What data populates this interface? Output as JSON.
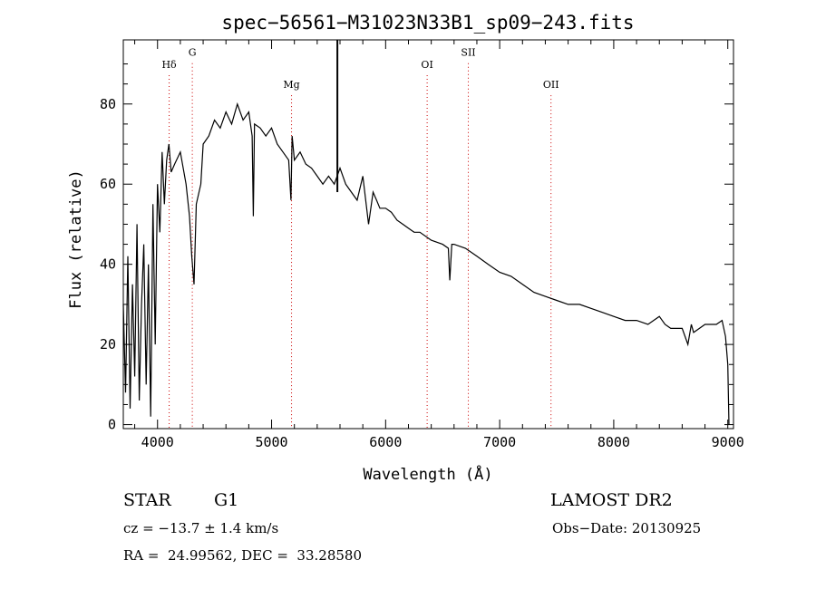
{
  "header": {
    "title": "spec−56561−M31023N33B1_sp09−243.fits"
  },
  "info": {
    "class": "STAR",
    "subclass": "G1",
    "survey": "LAMOST DR2",
    "cz": "cz = −13.7 ± 1.4 km/s",
    "obs_date": "Obs−Date: 20130925",
    "ra_dec": "RA =  24.99562, DEC =  33.28580"
  },
  "chart_data": {
    "type": "line",
    "title": "spec−56561−M31023N33B1_sp09−243.fits",
    "xlabel": "Wavelength (Å)",
    "ylabel": "Flux (relative)",
    "xlim": [
      3700,
      9050
    ],
    "ylim": [
      -1,
      96
    ],
    "x_ticks": [
      4000,
      5000,
      6000,
      7000,
      8000,
      9000
    ],
    "y_ticks": [
      0,
      20,
      40,
      60,
      80
    ],
    "line_color": "#000000",
    "marker_color": "#cc0000",
    "emission_marker": {
      "x": 5577
    },
    "line_markers": [
      {
        "name": "Hδ",
        "x": 4102,
        "label_y": 89
      },
      {
        "name": "G",
        "x": 4305,
        "label_y": 92
      },
      {
        "name": "Mg",
        "x": 5175,
        "label_y": 84
      },
      {
        "name": "OI",
        "x": 6364,
        "label_y": 89
      },
      {
        "name": "SII",
        "x": 6725,
        "label_y": 92
      },
      {
        "name": "OII",
        "x": 7450,
        "label_y": 84
      }
    ],
    "series": [
      {
        "x": [
          3700,
          3720,
          3740,
          3760,
          3780,
          3800,
          3820,
          3840,
          3860,
          3880,
          3900,
          3920,
          3940,
          3960,
          3980,
          4000,
          4020,
          4040,
          4060,
          4080,
          4100,
          4120,
          4150,
          4200,
          4250,
          4280,
          4300,
          4320,
          4340,
          4380,
          4400,
          4450,
          4500,
          4550,
          4600,
          4650,
          4700,
          4750,
          4800,
          4830,
          4840,
          4850,
          4900,
          4950,
          5000,
          5050,
          5100,
          5150,
          5170,
          5180,
          5200,
          5250,
          5300,
          5350,
          5400,
          5450,
          5500,
          5550,
          5600,
          5650,
          5700,
          5750,
          5800,
          5850,
          5890,
          5920,
          5950,
          6000,
          6050,
          6100,
          6150,
          6200,
          6250,
          6300,
          6400,
          6500,
          6550,
          6563,
          6580,
          6600,
          6700,
          6800,
          6900,
          7000,
          7100,
          7200,
          7300,
          7400,
          7500,
          7600,
          7700,
          7800,
          7900,
          8000,
          8100,
          8200,
          8300,
          8400,
          8450,
          8500,
          8600,
          8650,
          8680,
          8700,
          8800,
          8900,
          8950,
          8980,
          9000,
          9010
        ],
        "y": [
          30,
          8,
          42,
          4,
          35,
          12,
          50,
          6,
          30,
          45,
          10,
          40,
          2,
          55,
          20,
          60,
          48,
          68,
          55,
          66,
          70,
          63,
          65,
          68,
          60,
          52,
          42,
          35,
          55,
          60,
          70,
          72,
          76,
          74,
          78,
          75,
          80,
          76,
          78,
          72,
          52,
          75,
          74,
          72,
          74,
          70,
          68,
          66,
          56,
          72,
          66,
          68,
          65,
          64,
          62,
          60,
          62,
          60,
          64,
          60,
          58,
          56,
          62,
          50,
          58,
          56,
          54,
          54,
          53,
          51,
          50,
          49,
          48,
          48,
          46,
          45,
          44,
          36,
          45,
          45,
          44,
          42,
          40,
          38,
          37,
          35,
          33,
          32,
          31,
          30,
          30,
          29,
          28,
          27,
          26,
          26,
          25,
          27,
          25,
          24,
          24,
          20,
          25,
          23,
          25,
          25,
          26,
          22,
          15,
          0
        ]
      }
    ]
  }
}
